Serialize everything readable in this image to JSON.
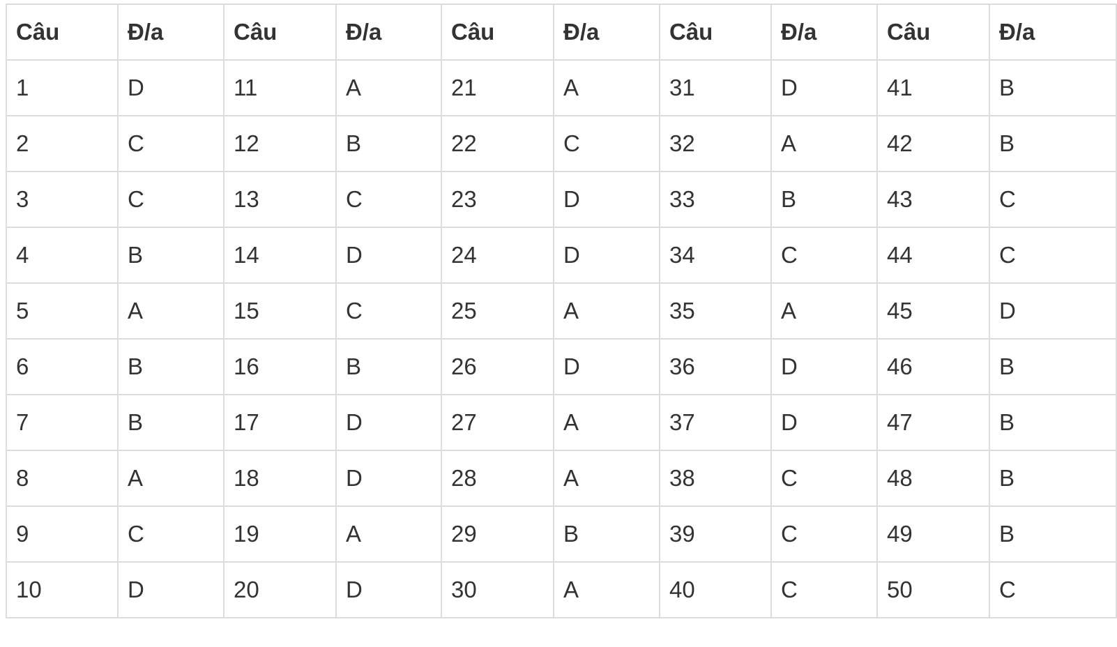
{
  "table": {
    "header": [
      "Câu",
      "Đ/a",
      "Câu",
      "Đ/a",
      "Câu",
      "Đ/a",
      "Câu",
      "Đ/a",
      "Câu",
      "Đ/a"
    ],
    "rows": [
      [
        "1",
        "D",
        "11",
        "A",
        "21",
        "A",
        "31",
        "D",
        "41",
        "B"
      ],
      [
        "2",
        "C",
        "12",
        "B",
        "22",
        "C",
        "32",
        "A",
        "42",
        "B"
      ],
      [
        "3",
        "C",
        "13",
        "C",
        "23",
        "D",
        "33",
        "B",
        "43",
        "C"
      ],
      [
        "4",
        "B",
        "14",
        "D",
        "24",
        "D",
        "34",
        "C",
        "44",
        "C"
      ],
      [
        "5",
        "A",
        "15",
        "C",
        "25",
        "A",
        "35",
        "A",
        "45",
        "D"
      ],
      [
        "6",
        "B",
        "16",
        "B",
        "26",
        "D",
        "36",
        "D",
        "46",
        "B"
      ],
      [
        "7",
        "B",
        "17",
        "D",
        "27",
        "A",
        "37",
        "D",
        "47",
        "B"
      ],
      [
        "8",
        "A",
        "18",
        "D",
        "28",
        "A",
        "38",
        "C",
        "48",
        "B"
      ],
      [
        "9",
        "C",
        "19",
        "A",
        "29",
        "B",
        "39",
        "C",
        "49",
        "B"
      ],
      [
        "10",
        "D",
        "20",
        "D",
        "30",
        "A",
        "40",
        "C",
        "50",
        "C"
      ]
    ]
  }
}
